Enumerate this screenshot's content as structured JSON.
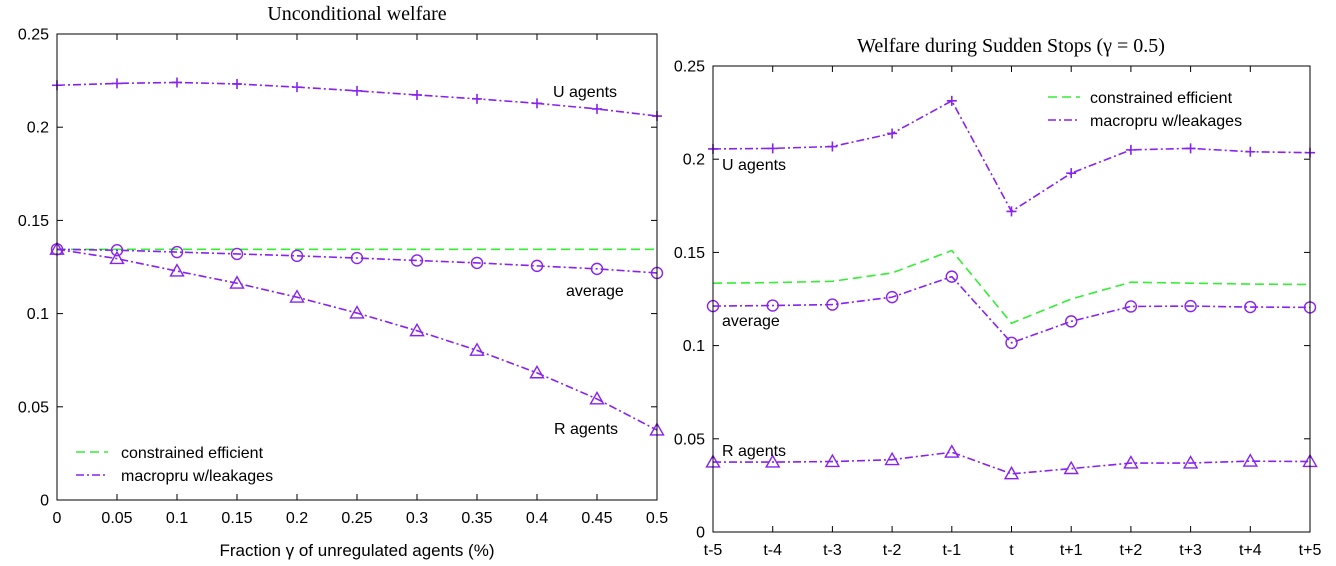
{
  "chart_data": [
    {
      "type": "line",
      "title": "Unconditional welfare",
      "xlabel": "Fraction γ of unregulated agents (%)",
      "ylabel": "",
      "x": [
        0,
        0.05,
        0.1,
        0.15,
        0.2,
        0.25,
        0.3,
        0.35,
        0.4,
        0.45,
        0.5
      ],
      "xticklabels": [
        "0",
        "0.05",
        "0.1",
        "0.15",
        "0.2",
        "0.25",
        "0.3",
        "0.35",
        "0.4",
        "0.45",
        "0.5"
      ],
      "yticks": [
        0,
        0.05,
        0.1,
        0.15,
        0.2,
        0.25
      ],
      "yticklabels": [
        "0",
        "0.05",
        "0.1",
        "0.15",
        "0.2",
        "0.25"
      ],
      "xlim": [
        0,
        0.5
      ],
      "ylim": [
        0,
        0.25
      ],
      "legend": {
        "placement": "bottom-left",
        "entries": [
          "constrained efficient",
          "macropru w/leakages"
        ]
      },
      "series": [
        {
          "name": "constrained efficient",
          "style": "dashed",
          "color": "#33ee33",
          "marker": "none",
          "values": [
            0.1345,
            0.1345,
            0.1345,
            0.1345,
            0.1345,
            0.1345,
            0.1345,
            0.1345,
            0.1345,
            0.1345,
            0.1345
          ]
        },
        {
          "name": "macropru w/leakages",
          "label": "U agents",
          "style": "dashdot",
          "color": "#8822ee",
          "marker": "plus",
          "values": [
            0.2225,
            0.2235,
            0.224,
            0.2232,
            0.2215,
            0.2195,
            0.2173,
            0.2152,
            0.2128,
            0.2098,
            0.206
          ]
        },
        {
          "name": "macropru w/leakages",
          "label": "average",
          "style": "dashdot",
          "color": "#8822ee",
          "marker": "circle",
          "values": [
            0.1345,
            0.134,
            0.133,
            0.132,
            0.131,
            0.1298,
            0.1285,
            0.1272,
            0.1256,
            0.124,
            0.1218
          ]
        },
        {
          "name": "macropru w/leakages",
          "label": "R agents",
          "style": "dashdot",
          "color": "#8822ee",
          "marker": "triangle",
          "values": [
            0.1345,
            0.1295,
            0.1228,
            0.1163,
            0.1088,
            0.1003,
            0.0908,
            0.0803,
            0.0682,
            0.0542,
            0.0375
          ]
        }
      ],
      "annotations": [
        "U agents",
        "average",
        "R agents"
      ]
    },
    {
      "type": "line",
      "title": "Welfare during Sudden Stops (γ = 0.5)",
      "xlabel": "",
      "ylabel": "",
      "x": [
        -5,
        -4,
        -3,
        -2,
        -1,
        0,
        1,
        2,
        3,
        4,
        5
      ],
      "xticklabels": [
        "t-5",
        "t-4",
        "t-3",
        "t-2",
        "t-1",
        "t",
        "t+1",
        "t+2",
        "t+3",
        "t+4",
        "t+5"
      ],
      "yticks": [
        0,
        0.05,
        0.1,
        0.15,
        0.2,
        0.25
      ],
      "yticklabels": [
        "0",
        "0.05",
        "0.1",
        "0.15",
        "0.2",
        "0.25"
      ],
      "xlim": [
        -5,
        5
      ],
      "ylim": [
        0,
        0.25
      ],
      "legend": {
        "placement": "top-right",
        "entries": [
          "constrained efficient",
          "macropru w/leakages"
        ]
      },
      "series": [
        {
          "name": "constrained efficient",
          "style": "dashed",
          "color": "#33ee33",
          "marker": "none",
          "values": [
            0.1335,
            0.1338,
            0.1345,
            0.139,
            0.151,
            0.112,
            0.125,
            0.134,
            0.1335,
            0.133,
            0.1328
          ]
        },
        {
          "name": "macropru w/leakages",
          "label": "U agents",
          "style": "dashdot",
          "color": "#8822ee",
          "marker": "plus",
          "values": [
            0.2055,
            0.2058,
            0.2068,
            0.2138,
            0.2313,
            0.172,
            0.1925,
            0.205,
            0.2058,
            0.204,
            0.2035
          ]
        },
        {
          "name": "macropru w/leakages",
          "label": "average",
          "style": "dashdot",
          "color": "#8822ee",
          "marker": "circle",
          "values": [
            0.1212,
            0.1215,
            0.122,
            0.126,
            0.137,
            0.1015,
            0.113,
            0.121,
            0.1212,
            0.1207,
            0.1205
          ]
        },
        {
          "name": "macropru w/leakages",
          "label": "R agents",
          "style": "dashdot",
          "color": "#8822ee",
          "marker": "triangle",
          "values": [
            0.0375,
            0.0375,
            0.0378,
            0.0388,
            0.0428,
            0.0312,
            0.034,
            0.037,
            0.037,
            0.038,
            0.0378
          ]
        }
      ],
      "annotations": [
        "U agents",
        "average",
        "R agents"
      ]
    }
  ]
}
